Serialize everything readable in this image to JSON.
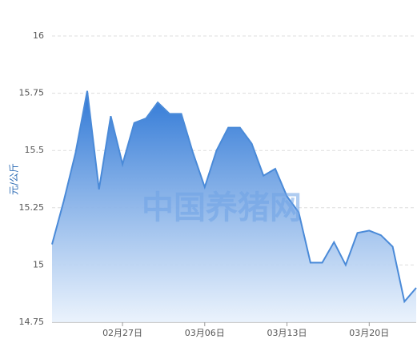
{
  "chart_data": {
    "type": "area",
    "y_label": "元/公斤",
    "watermark": "中国养猪网",
    "categories": [
      null,
      null,
      null,
      null,
      null,
      null,
      "02月27日",
      null,
      null,
      null,
      null,
      null,
      null,
      "03月06日",
      null,
      null,
      null,
      null,
      null,
      null,
      "03月13日",
      null,
      null,
      null,
      null,
      null,
      null,
      "03月20日",
      null,
      null,
      null,
      null
    ],
    "values": [
      15.09,
      15.28,
      15.49,
      15.76,
      15.33,
      15.65,
      15.44,
      15.62,
      15.64,
      15.71,
      15.66,
      15.66,
      15.49,
      15.34,
      15.5,
      15.6,
      15.6,
      15.53,
      15.39,
      15.42,
      15.3,
      15.23,
      15.01,
      15.01,
      15.1,
      15.0,
      15.14,
      15.15,
      15.13,
      15.08,
      14.84,
      14.9
    ],
    "color": "#4a8ad8",
    "ylim": [
      14.75,
      16
    ],
    "yticks": [
      14.75,
      15,
      15.25,
      15.5,
      15.75,
      16
    ],
    "grid": true
  }
}
